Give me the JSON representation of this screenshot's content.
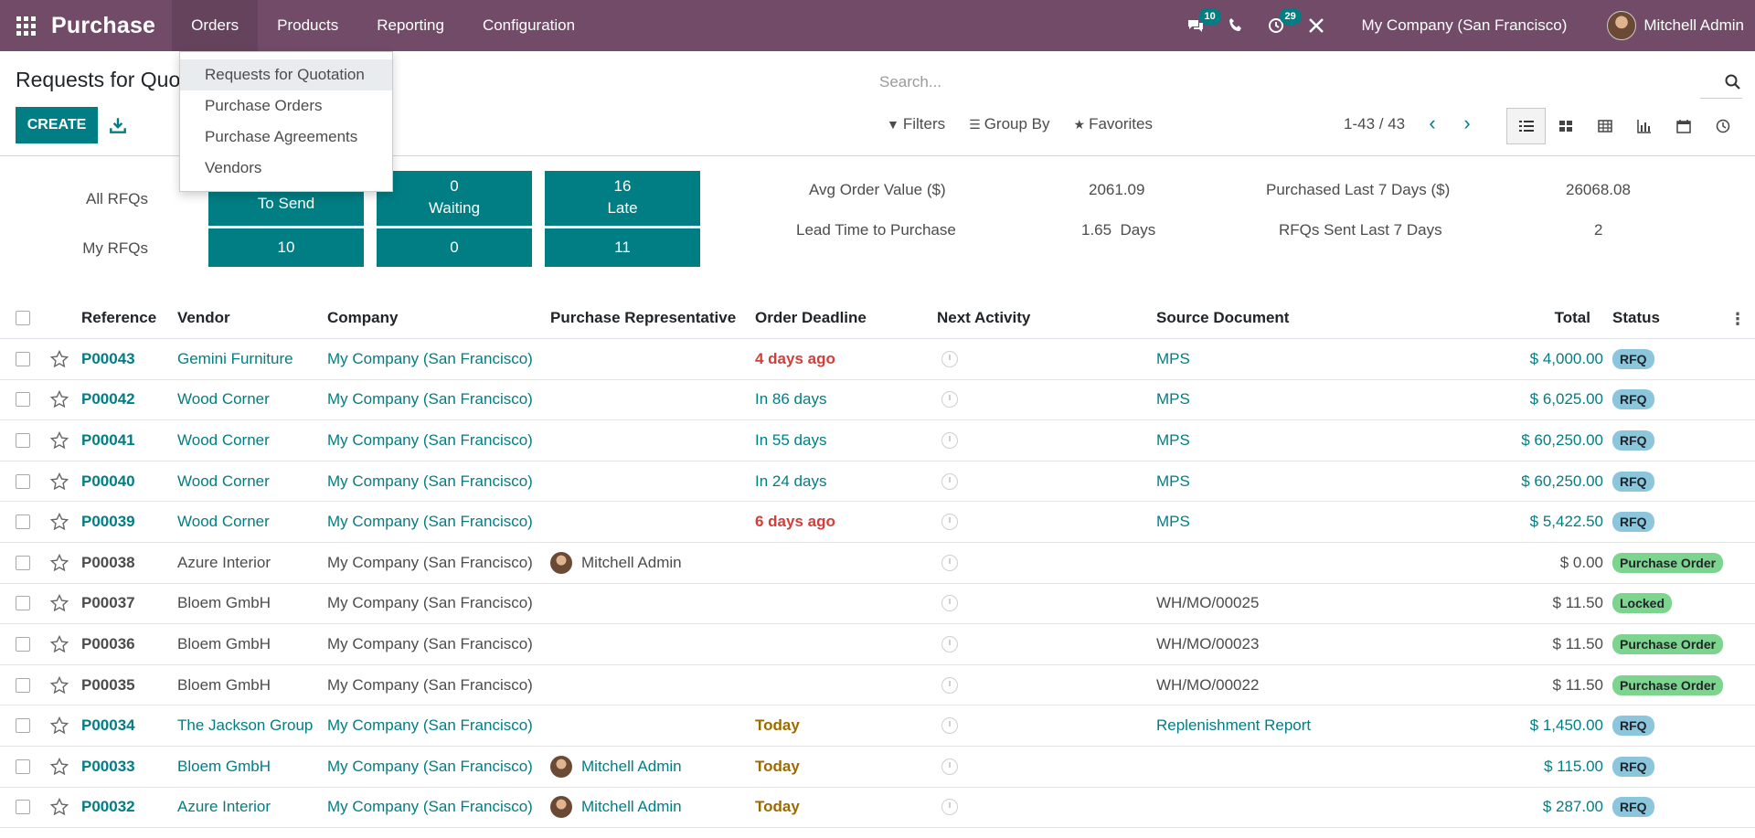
{
  "app": {
    "name": "Purchase",
    "menus": [
      "Orders",
      "Products",
      "Reporting",
      "Configuration"
    ],
    "messages_badge": "10",
    "activities_badge": "29",
    "company": "My Company (San Francisco)",
    "user": "Mitchell Admin"
  },
  "orders_menu": {
    "items": [
      "Requests for Quotation",
      "Purchase Orders",
      "Purchase Agreements",
      "Vendors"
    ]
  },
  "control": {
    "title": "Requests for Quotation",
    "create_label": "CREATE",
    "search_placeholder": "Search...",
    "filters_label": "Filters",
    "groupby_label": "Group By",
    "favorites_label": "Favorites",
    "pager": "1-43 / 43"
  },
  "dashboard": {
    "all_rfqs_label": "All RFQs",
    "my_rfqs_label": "My RFQs",
    "tiles_all": [
      {
        "value": "",
        "label": "To Send"
      },
      {
        "value": "0",
        "label": "Waiting"
      },
      {
        "value": "16",
        "label": "Late"
      }
    ],
    "tiles_my": [
      "10",
      "0",
      "11"
    ],
    "stats": {
      "avg_order_label": "Avg Order Value ($)",
      "avg_order_value": "2061.09",
      "lead_time_label": "Lead Time to Purchase",
      "lead_time_value": "1.65  Days",
      "purchased_label": "Purchased Last 7 Days ($)",
      "purchased_value": "26068.08",
      "rfqs_sent_label": "RFQs Sent Last 7 Days",
      "rfqs_sent_value": "2"
    }
  },
  "table": {
    "headers": {
      "reference": "Reference",
      "vendor": "Vendor",
      "company": "Company",
      "rep": "Purchase Representative",
      "deadline": "Order Deadline",
      "activity": "Next Activity",
      "source": "Source Document",
      "total": "Total",
      "status": "Status"
    },
    "rows": [
      {
        "ref": "P00043",
        "vendor": "Gemini Furniture",
        "company": "My Company (San Francisco)",
        "rep": "",
        "deadline": "4 days ago",
        "source": "MPS",
        "total": "$ 4,000.00",
        "status": "RFQ"
      },
      {
        "ref": "P00042",
        "vendor": "Wood Corner",
        "company": "My Company (San Francisco)",
        "rep": "",
        "deadline": "In 86 days",
        "source": "MPS",
        "total": "$ 6,025.00",
        "status": "RFQ"
      },
      {
        "ref": "P00041",
        "vendor": "Wood Corner",
        "company": "My Company (San Francisco)",
        "rep": "",
        "deadline": "In 55 days",
        "source": "MPS",
        "total": "$ 60,250.00",
        "status": "RFQ"
      },
      {
        "ref": "P00040",
        "vendor": "Wood Corner",
        "company": "My Company (San Francisco)",
        "rep": "",
        "deadline": "In 24 days",
        "source": "MPS",
        "total": "$ 60,250.00",
        "status": "RFQ"
      },
      {
        "ref": "P00039",
        "vendor": "Wood Corner",
        "company": "My Company (San Francisco)",
        "rep": "",
        "deadline": "6 days ago",
        "source": "MPS",
        "total": "$ 5,422.50",
        "status": "RFQ"
      },
      {
        "ref": "P00038",
        "vendor": "Azure Interior",
        "company": "My Company (San Francisco)",
        "rep": "Mitchell Admin",
        "deadline": "",
        "source": "",
        "total": "$ 0.00",
        "status": "Purchase Order"
      },
      {
        "ref": "P00037",
        "vendor": "Bloem GmbH",
        "company": "My Company (San Francisco)",
        "rep": "",
        "deadline": "",
        "source": "WH/MO/00025",
        "total": "$ 11.50",
        "status": "Locked"
      },
      {
        "ref": "P00036",
        "vendor": "Bloem GmbH",
        "company": "My Company (San Francisco)",
        "rep": "",
        "deadline": "",
        "source": "WH/MO/00023",
        "total": "$ 11.50",
        "status": "Purchase Order"
      },
      {
        "ref": "P00035",
        "vendor": "Bloem GmbH",
        "company": "My Company (San Francisco)",
        "rep": "",
        "deadline": "",
        "source": "WH/MO/00022",
        "total": "$ 11.50",
        "status": "Purchase Order"
      },
      {
        "ref": "P00034",
        "vendor": "The Jackson Group",
        "company": "My Company (San Francisco)",
        "rep": "",
        "deadline": "Today",
        "source": "Replenishment Report",
        "total": "$ 1,450.00",
        "status": "RFQ"
      },
      {
        "ref": "P00033",
        "vendor": "Bloem GmbH",
        "company": "My Company (San Francisco)",
        "rep": "Mitchell Admin",
        "deadline": "Today",
        "source": "",
        "total": "$ 115.00",
        "status": "RFQ"
      },
      {
        "ref": "P00032",
        "vendor": "Azure Interior",
        "company": "My Company (San Francisco)",
        "rep": "Mitchell Admin",
        "deadline": "Today",
        "source": "",
        "total": "$ 287.00",
        "status": "RFQ"
      }
    ]
  }
}
